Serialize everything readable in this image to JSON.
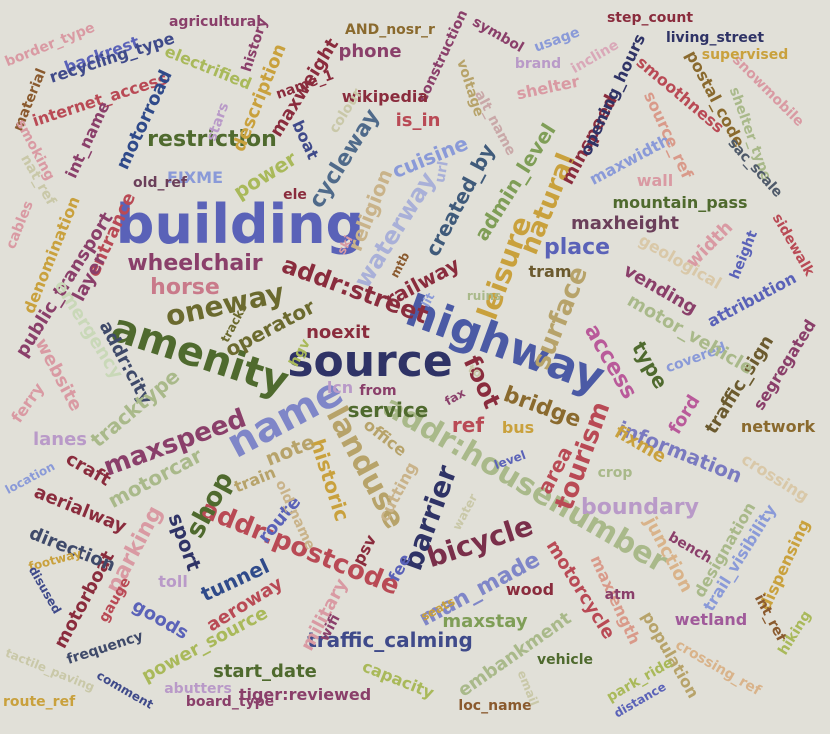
{
  "palette": {
    "background": "#e1e0d8",
    "navy": "#2f3366",
    "blue": "#5a62b8",
    "violet": "#7b61a6",
    "olive": "#4f6a2e",
    "green": "#7f9e57",
    "sage": "#a9b98a",
    "maroon": "#8a2c3d",
    "red": "#b94a55",
    "pink": "#d99aa3",
    "tan": "#b7a36a",
    "gold": "#c9a13d",
    "brown": "#8a5a2e",
    "mauve": "#a05a7a"
  },
  "words": [
    {
      "text": "building",
      "color": "#5a62b8"
    },
    {
      "text": "source",
      "color": "#2f3366"
    },
    {
      "text": "highway",
      "color": "#4b5aa5"
    },
    {
      "text": "amenity",
      "color": "#4f6a2e"
    },
    {
      "text": "name",
      "color": "#7f86c8"
    },
    {
      "text": "addr:housenumber",
      "color": "#a9b98a"
    },
    {
      "text": "addr:postcode",
      "color": "#b94a55"
    },
    {
      "text": "addr:street",
      "color": "#8a2c3d"
    },
    {
      "text": "oneway",
      "color": "#6b6a2e"
    },
    {
      "text": "landuse",
      "color": "#b7a36a"
    },
    {
      "text": "bicycle",
      "color": "#7a2f4a"
    },
    {
      "text": "shop",
      "color": "#4f6a2e"
    },
    {
      "text": "maxspeed",
      "color": "#8a3f6a"
    },
    {
      "text": "barrier",
      "color": "#2f3366"
    },
    {
      "text": "leisure",
      "color": "#c9a13d"
    },
    {
      "text": "tourism",
      "color": "#b94a55"
    },
    {
      "text": "surface",
      "color": "#b7a36a"
    },
    {
      "text": "natural",
      "color": "#c9a13d"
    },
    {
      "text": "wheelchair",
      "color": "#8a3f6a"
    },
    {
      "text": "horse",
      "color": "#c97a8a"
    },
    {
      "text": "railway",
      "color": "#8a2c3d"
    },
    {
      "text": "waterway",
      "color": "#a9b0d8"
    },
    {
      "text": "cycleway",
      "color": "#4f6a8a"
    },
    {
      "text": "religion",
      "color": "#c9b38a"
    },
    {
      "text": "created_by",
      "color": "#3f5a7a"
    },
    {
      "text": "admin_level",
      "color": "#7f9e57"
    },
    {
      "text": "place",
      "color": "#5a62b8"
    },
    {
      "text": "power",
      "color": "#a9b95a"
    },
    {
      "text": "restriction",
      "color": "#4f6a2e"
    },
    {
      "text": "access",
      "color": "#b95a9a"
    },
    {
      "text": "foot",
      "color": "#8a2c3d"
    },
    {
      "text": "bridge",
      "color": "#8a6a2e"
    },
    {
      "text": "service",
      "color": "#4f6a2e"
    },
    {
      "text": "noexit",
      "color": "#8a2c3d"
    },
    {
      "text": "operator",
      "color": "#6b6a2e"
    },
    {
      "text": "historic",
      "color": "#c9a13d"
    },
    {
      "text": "note",
      "color": "#b7a36a"
    },
    {
      "text": "boundary",
      "color": "#b99ac8"
    },
    {
      "text": "information",
      "color": "#7a7ac0"
    },
    {
      "text": "motorcar",
      "color": "#a9b98a"
    },
    {
      "text": "parking",
      "color": "#d99aa3"
    },
    {
      "text": "sport",
      "color": "#2f3366"
    },
    {
      "text": "tunnel",
      "color": "#2f4a8a"
    },
    {
      "text": "aeroway",
      "color": "#b94a55"
    },
    {
      "text": "man_made",
      "color": "#7f86c8"
    },
    {
      "text": "motorcycle",
      "color": "#b94a55"
    },
    {
      "text": "traffic_calming",
      "color": "#3f4a8a"
    },
    {
      "text": "power_source",
      "color": "#a9b95a"
    },
    {
      "text": "motorboat",
      "color": "#8a2c3d"
    },
    {
      "text": "embankment",
      "color": "#a9b98a"
    },
    {
      "text": "start_date",
      "color": "#4f6a2e"
    },
    {
      "text": "maxstay",
      "color": "#7f9e57"
    },
    {
      "text": "wood",
      "color": "#8a2c3d"
    },
    {
      "text": "area",
      "color": "#b94a55"
    },
    {
      "text": "fixme",
      "color": "#c9a13d"
    },
    {
      "text": "junction",
      "color": "#d9b38a"
    },
    {
      "text": "maxlength",
      "color": "#d99a8a"
    },
    {
      "text": "population",
      "color": "#b7a36a"
    },
    {
      "text": "wetland",
      "color": "#a05a9a"
    },
    {
      "text": "crossing",
      "color": "#d9c8a8"
    },
    {
      "text": "designation",
      "color": "#a9b98a"
    },
    {
      "text": "trail_visibility",
      "color": "#8a9ad8"
    },
    {
      "text": "dispensing",
      "color": "#c9a13d"
    },
    {
      "text": "int_ref",
      "color": "#8a5a2e"
    },
    {
      "text": "hiking",
      "color": "#a9b95a"
    },
    {
      "text": "crossing_ref",
      "color": "#d9b38a"
    },
    {
      "text": "network",
      "color": "#8a6a2e"
    },
    {
      "text": "traffic_sign",
      "color": "#6b5a2e"
    },
    {
      "text": "segregated",
      "color": "#8a3f6a"
    },
    {
      "text": "ford",
      "color": "#b95a9a"
    },
    {
      "text": "covered",
      "color": "#8a9ad8"
    },
    {
      "text": "type",
      "color": "#4f6a2e"
    },
    {
      "text": "motor_vehicle",
      "color": "#a9b98a"
    },
    {
      "text": "attribution",
      "color": "#5a62b8"
    },
    {
      "text": "vending",
      "color": "#8a3f6a"
    },
    {
      "text": "geological",
      "color": "#d9c8a8"
    },
    {
      "text": "width",
      "color": "#d99aa3"
    },
    {
      "text": "height",
      "color": "#5a62b8"
    },
    {
      "text": "sidewalk",
      "color": "#b94a55"
    },
    {
      "text": "maxheight",
      "color": "#6b3f5a"
    },
    {
      "text": "mountain_pass",
      "color": "#4f6a2e"
    },
    {
      "text": "wall",
      "color": "#d99aa3"
    },
    {
      "text": "maxwidth",
      "color": "#8a9ad8"
    },
    {
      "text": "source_ref",
      "color": "#d99a8a"
    },
    {
      "text": "minspeed",
      "color": "#8a2c3d"
    },
    {
      "text": "opening_hours",
      "color": "#2f3366"
    },
    {
      "text": "smoothness",
      "color": "#b94a55"
    },
    {
      "text": "postal_code",
      "color": "#8a6a2e"
    },
    {
      "text": "shelter_type",
      "color": "#a9b98a"
    },
    {
      "text": "sac_scale",
      "color": "#4f5a6a"
    },
    {
      "text": "snowmobile",
      "color": "#d99aa3"
    },
    {
      "text": "living_street",
      "color": "#2f3366"
    },
    {
      "text": "supervised",
      "color": "#c9a13d"
    },
    {
      "text": "step_count",
      "color": "#8a2c3d"
    },
    {
      "text": "incline",
      "color": "#d9a8b8"
    },
    {
      "text": "usage",
      "color": "#8a9ad8"
    },
    {
      "text": "symbol",
      "color": "#8a3f6a"
    },
    {
      "text": "brand",
      "color": "#b99ac8"
    },
    {
      "text": "shelter",
      "color": "#d99aa3"
    },
    {
      "text": "AND_nosr_r",
      "color": "#8a6a2e"
    },
    {
      "text": "construction",
      "color": "#8a3f6a"
    },
    {
      "text": "voltage",
      "color": "#b7a36a"
    },
    {
      "text": "alt_name",
      "color": "#c9a8a8"
    },
    {
      "text": "phone",
      "color": "#8a3f6a"
    },
    {
      "text": "wikipedia",
      "color": "#8a2c3d"
    },
    {
      "text": "is_in",
      "color": "#b94a55"
    },
    {
      "text": "cuisine",
      "color": "#8a9ad8"
    },
    {
      "text": "url",
      "color": "#a9b0d8"
    },
    {
      "text": "maxweight",
      "color": "#8a2c3d"
    },
    {
      "text": "boat",
      "color": "#3f4a8a"
    },
    {
      "text": "colour",
      "color": "#c9c8a8"
    },
    {
      "text": "name_1",
      "color": "#8a2c3d"
    },
    {
      "text": "history",
      "color": "#8a3f6a"
    },
    {
      "text": "description",
      "color": "#c9a13d"
    },
    {
      "text": "stars",
      "color": "#b99ac8"
    },
    {
      "text": "agricultural",
      "color": "#8a3f6a"
    },
    {
      "text": "electrified",
      "color": "#a9b95a"
    },
    {
      "text": "backrest",
      "color": "#5a62b8"
    },
    {
      "text": "recycling_type",
      "color": "#3f4a8a"
    },
    {
      "text": "border_type",
      "color": "#d99aa3"
    },
    {
      "text": "material",
      "color": "#8a5a2e"
    },
    {
      "text": "internet_access",
      "color": "#b94a55"
    },
    {
      "text": "motorroad",
      "color": "#2f4a8a"
    },
    {
      "text": "int_name",
      "color": "#8a3f6a"
    },
    {
      "text": "smoking",
      "color": "#d99aa3"
    },
    {
      "text": "nat_ref",
      "color": "#c9c8a8"
    },
    {
      "text": "FIXME",
      "color": "#8a9ad8"
    },
    {
      "text": "old_ref",
      "color": "#6b3f5a"
    },
    {
      "text": "ele",
      "color": "#8a2c3d"
    },
    {
      "text": "entrance",
      "color": "#b94a55"
    },
    {
      "text": "cables",
      "color": "#d99aa3"
    },
    {
      "text": "denomination",
      "color": "#c9a13d"
    },
    {
      "text": "public_transport",
      "color": "#8a3f6a"
    },
    {
      "text": "layer",
      "color": "#8a3f6a"
    },
    {
      "text": "addr:city",
      "color": "#3f4a6a"
    },
    {
      "text": "emergency",
      "color": "#c9d8b8"
    },
    {
      "text": "website",
      "color": "#d99aa3"
    },
    {
      "text": "ferry",
      "color": "#d99aa3"
    },
    {
      "text": "lanes",
      "color": "#b99ac8"
    },
    {
      "text": "tracktype",
      "color": "#a9b98a"
    },
    {
      "text": "craft",
      "color": "#8a2c3d"
    },
    {
      "text": "location",
      "color": "#8a9ad8"
    },
    {
      "text": "aerialway",
      "color": "#8a2c3d"
    },
    {
      "text": "direction",
      "color": "#3f4a6a"
    },
    {
      "text": "footway",
      "color": "#c9a13d"
    },
    {
      "text": "disused",
      "color": "#3f4a8a"
    },
    {
      "text": "gauge",
      "color": "#b94a55"
    },
    {
      "text": "goods",
      "color": "#5a62b8"
    },
    {
      "text": "toll",
      "color": "#b99ac8"
    },
    {
      "text": "frequency",
      "color": "#3f4a6a"
    },
    {
      "text": "tactile_paving",
      "color": "#c9c8a8"
    },
    {
      "text": "comment",
      "color": "#3f4a8a"
    },
    {
      "text": "route_ref",
      "color": "#c9a13d"
    },
    {
      "text": "abutters",
      "color": "#b99ac8"
    },
    {
      "text": "board_type",
      "color": "#8a3f6a"
    },
    {
      "text": "tiger:reviewed",
      "color": "#8a3f6a"
    },
    {
      "text": "capacity",
      "color": "#a9b95a"
    },
    {
      "text": "loc_name",
      "color": "#8a5a2e"
    },
    {
      "text": "email",
      "color": "#c9c8a8"
    },
    {
      "text": "vehicle",
      "color": "#4f6a2e"
    },
    {
      "text": "park_ride",
      "color": "#a9b95a"
    },
    {
      "text": "distance",
      "color": "#5a62b8"
    },
    {
      "text": "atm",
      "color": "#8a3f6a"
    },
    {
      "text": "bench",
      "color": "#8a3f6a"
    },
    {
      "text": "seats",
      "color": "#c9a13d"
    },
    {
      "text": "fee",
      "color": "#5a62b8"
    },
    {
      "text": "psv",
      "color": "#8a2c3d"
    },
    {
      "text": "cutting",
      "color": "#c9b38a"
    },
    {
      "text": "water",
      "color": "#c9c8a8"
    },
    {
      "text": "military",
      "color": "#d99aa3"
    },
    {
      "text": "wifi",
      "color": "#8a3f6a"
    },
    {
      "text": "route",
      "color": "#5a62b8"
    },
    {
      "text": "old_name",
      "color": "#c9b38a"
    },
    {
      "text": "train",
      "color": "#b7a36a"
    },
    {
      "text": "office",
      "color": "#b7a36a"
    },
    {
      "text": "level",
      "color": "#5a62b8"
    },
    {
      "text": "crop",
      "color": "#a9b98a"
    },
    {
      "text": "bus",
      "color": "#c9a13d"
    },
    {
      "text": "ref",
      "color": "#b94a55"
    },
    {
      "text": "fax",
      "color": "#8a3f6a"
    },
    {
      "text": "to",
      "color": "#c9c8a8"
    },
    {
      "text": "from",
      "color": "#8a3f6a"
    },
    {
      "text": "lcn",
      "color": "#b99ac8"
    },
    {
      "text": "lit",
      "color": "#8a9ad8"
    },
    {
      "text": "ruins",
      "color": "#a9b98a"
    },
    {
      "text": "ski",
      "color": "#d99aa3"
    },
    {
      "text": "mtb",
      "color": "#8a5a2e"
    },
    {
      "text": "tracks",
      "color": "#6b6a2e"
    },
    {
      "text": "hgv",
      "color": "#a9b95a"
    },
    {
      "text": "tram",
      "color": "#6b5a2e"
    }
  ]
}
